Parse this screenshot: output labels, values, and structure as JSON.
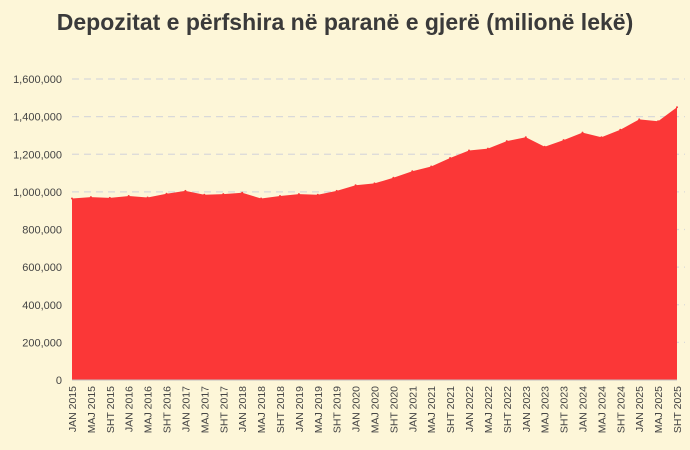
{
  "chart_data": {
    "type": "area",
    "title": "Depozitat e përfshira në paranë e gjerë (milionë lekë)",
    "xlabel": "",
    "ylabel": "",
    "ylim": [
      0,
      1600000
    ],
    "yticks": [
      "0",
      "200,000",
      "400,000",
      "600,000",
      "800,000",
      "1,000,000",
      "1,200,000",
      "1,400,000",
      "1,600,000"
    ],
    "xticks": [
      "JAN 2015",
      "MAJ 2015",
      "SHT 2015",
      "JAN 2016",
      "MAJ 2016",
      "SHT 2016",
      "JAN 2017",
      "MAJ 2017",
      "SHT 2017",
      "JAN 2018",
      "MAJ 2018",
      "SHT 2018",
      "JAN 2019",
      "MAJ 2019",
      "SHT 2019",
      "JAN 2020",
      "MAJ 2020",
      "SHT 2020",
      "JAN 2021",
      "MAJ 2021",
      "SHT 2021",
      "JAN 2022",
      "MAJ 2022",
      "SHT 2022",
      "JAN 2023",
      "MAJ 2023",
      "SHT 2023",
      "JAN 2024",
      "MAJ 2024",
      "SHT 2024",
      "JAN 2025",
      "MAJ 2025",
      "SHT 2025"
    ],
    "grid": true,
    "fill_color": "#fb3737",
    "background": "#fdf6d8",
    "x": [
      "JAN 2015",
      "MAJ 2015",
      "SHT 2015",
      "JAN 2016",
      "MAJ 2016",
      "SHT 2016",
      "JAN 2017",
      "MAJ 2017",
      "SHT 2017",
      "JAN 2018",
      "MAJ 2018",
      "SHT 2018",
      "JAN 2019",
      "MAJ 2019",
      "SHT 2019",
      "JAN 2020",
      "MAJ 2020",
      "SHT 2020",
      "JAN 2021",
      "MAJ 2021",
      "SHT 2021",
      "JAN 2022",
      "MAJ 2022",
      "SHT 2022",
      "JAN 2023",
      "MAJ 2023",
      "SHT 2023",
      "JAN 2024",
      "MAJ 2024",
      "SHT 2024",
      "JAN 2025",
      "MAJ 2025",
      "SHT 2025"
    ],
    "values": [
      965000,
      972000,
      968000,
      978000,
      970000,
      990000,
      1005000,
      985000,
      988000,
      995000,
      965000,
      978000,
      988000,
      985000,
      1005000,
      1035000,
      1045000,
      1075000,
      1110000,
      1135000,
      1180000,
      1220000,
      1230000,
      1270000,
      1290000,
      1240000,
      1275000,
      1315000,
      1290000,
      1330000,
      1385000,
      1375000,
      1450000
    ]
  }
}
